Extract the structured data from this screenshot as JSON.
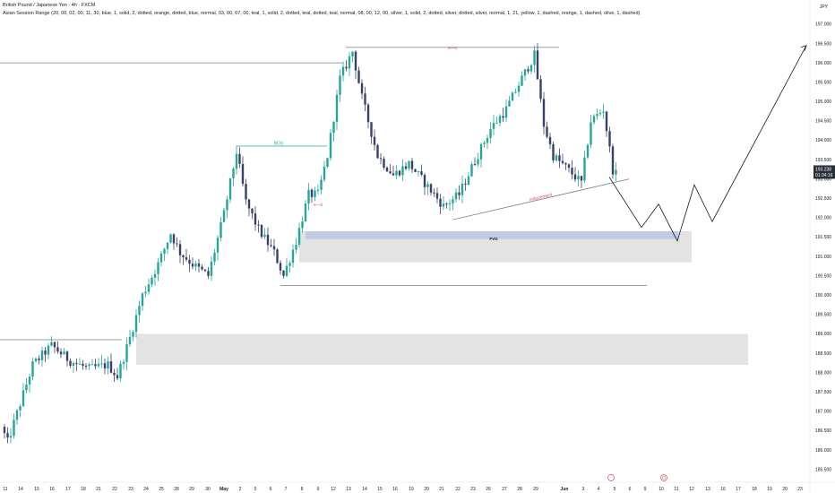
{
  "header": {
    "title": "British Pound / Japanese Yen · 4h · FXCM",
    "indicator": "Asian Session Range (20, 00, 02, 00, 11, 30, blue, 1, solid, 2, dotted, orange, dotted, blue, normal, 03, 00, 07, 00, teal, 1, solid, 2, dotted, teal, dotted, teal, normal, 08, 00, 12, 00, silver, 1, solid, 2, dotted, silver, dotted, silver, normal, 1, 21, yellow, 1, dashed, orange, 1, dashed, olive, 1, dashed)"
  },
  "currency": "JPY",
  "price_box": {
    "price": "193.238",
    "countdown": "01:34:16"
  },
  "colors": {
    "up": "#26a69a",
    "down": "#3a4168",
    "fvg": "#bcc8e6",
    "zone": "#e3e3e3",
    "bos": "#26a69a",
    "inducement": "#e0475c",
    "price_box": "#2a2e39"
  },
  "chart_data": {
    "type": "candlestick",
    "y_range": [
      185.4,
      197.3
    ],
    "y_ticks": [
      "185.500",
      "186.000",
      "186.500",
      "187.000",
      "187.500",
      "188.000",
      "188.500",
      "189.000",
      "189.500",
      "190.000",
      "190.500",
      "191.000",
      "191.500",
      "192.000",
      "192.500",
      "193.000",
      "193.500",
      "194.000",
      "194.500",
      "195.000",
      "195.500",
      "196.000",
      "196.500",
      "197.000"
    ],
    "x_ticks": [
      "11",
      "14",
      "15",
      "16",
      "17",
      "18",
      "21",
      "22",
      "23",
      "24",
      "25",
      "28",
      "29",
      "30",
      "May",
      "2",
      "5",
      "6",
      "7",
      "8",
      "9",
      "12",
      "13",
      "14",
      "15",
      "16",
      "19",
      "20",
      "21",
      "22",
      "23",
      "26",
      "27",
      "28",
      "29",
      "Jun",
      "3",
      "4",
      "5",
      "6",
      "9",
      "10",
      "11",
      "12",
      "13",
      "16",
      "17",
      "18",
      "19",
      "20",
      "23"
    ],
    "annotations": {
      "bos_label": "BOS",
      "inducement_label": "inducement",
      "fvg_label": "FVG",
      "x_label": "x—x"
    },
    "event_icons": [
      "flag",
      "dividend"
    ],
    "candle_count": 196,
    "last_close": 193.238,
    "key_levels": {
      "top_high": 196.4,
      "bos_level": 193.85,
      "left_high": 196.0,
      "left_low_level": 188.85,
      "sweep_low": 190.25,
      "fvg_top": 191.65,
      "fvg_bottom": 191.45,
      "zone_bottom": 190.85,
      "lower_zone_top": 189.0,
      "lower_zone_bottom": 188.2
    },
    "forecast_path": [
      193.05,
      191.75,
      192.35,
      191.4,
      192.85,
      191.9,
      196.45
    ]
  }
}
